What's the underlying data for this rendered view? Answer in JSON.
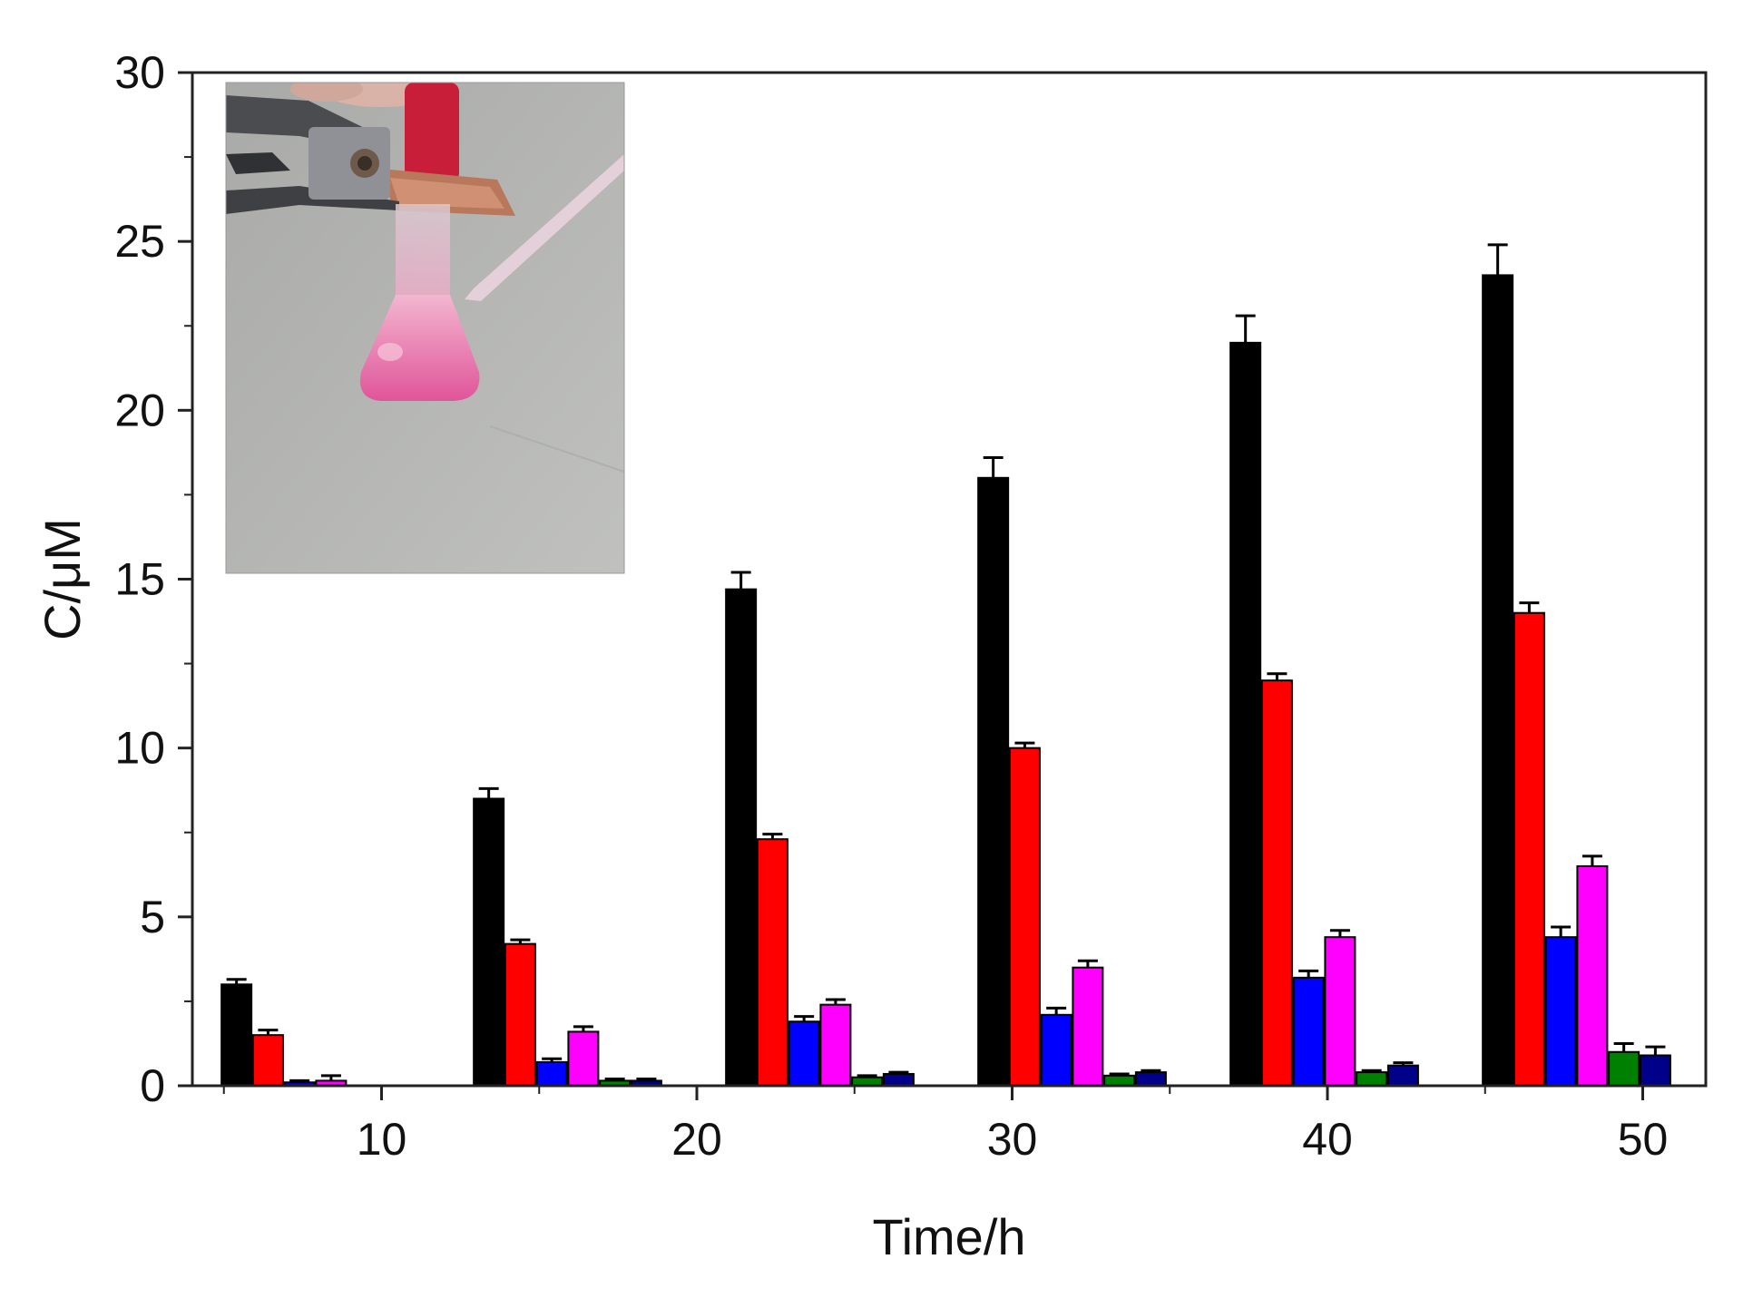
{
  "chart_data": {
    "type": "bar",
    "xlabel": "Time/h",
    "ylabel": "C/μM",
    "xlim": [
      4,
      52
    ],
    "ylim": [
      0,
      30
    ],
    "x_ticks": [
      10,
      20,
      30,
      40,
      50
    ],
    "y_ticks": [
      0,
      5,
      10,
      15,
      20,
      25,
      30
    ],
    "x_tick_labels": [
      "10",
      "20",
      "30",
      "40",
      "50"
    ],
    "y_tick_labels": [
      "0",
      "5",
      "10",
      "15",
      "20",
      "25",
      "30"
    ],
    "grid": false,
    "legend": "none",
    "series_colors": [
      "#000000",
      "#ff0000",
      "#0000ff",
      "#ff00ff",
      "#008000",
      "#00008b"
    ],
    "bars": [
      [
        [
          5.4,
          3.0,
          0.15
        ],
        [
          6.4,
          1.5,
          0.15
        ],
        [
          7.4,
          0.1,
          0.05
        ],
        [
          8.4,
          0.15,
          0.15
        ],
        null,
        null
      ],
      [
        [
          13.4,
          8.5,
          0.3
        ],
        [
          14.4,
          4.2,
          0.12
        ],
        [
          15.4,
          0.7,
          0.1
        ],
        [
          16.4,
          1.6,
          0.15
        ],
        [
          17.4,
          0.15,
          0.05
        ],
        [
          18.4,
          0.15,
          0.05
        ]
      ],
      [
        [
          21.4,
          14.7,
          0.5
        ],
        [
          22.4,
          7.3,
          0.15
        ],
        [
          23.4,
          1.9,
          0.15
        ],
        [
          24.4,
          2.4,
          0.15
        ],
        [
          25.4,
          0.25,
          0.05
        ],
        [
          26.4,
          0.35,
          0.05
        ]
      ],
      [
        [
          29.4,
          18.0,
          0.6
        ],
        [
          30.4,
          10.0,
          0.15
        ],
        [
          31.4,
          2.1,
          0.2
        ],
        [
          32.4,
          3.5,
          0.2
        ],
        [
          33.4,
          0.3,
          0.05
        ],
        [
          34.4,
          0.4,
          0.05
        ]
      ],
      [
        [
          37.4,
          22.0,
          0.8
        ],
        [
          38.4,
          12.0,
          0.2
        ],
        [
          39.4,
          3.2,
          0.2
        ],
        [
          40.4,
          4.4,
          0.2
        ],
        [
          41.4,
          0.4,
          0.05
        ],
        [
          42.4,
          0.6,
          0.08
        ]
      ],
      [
        [
          45.4,
          24.0,
          0.9
        ],
        [
          46.4,
          14.0,
          0.3
        ],
        [
          47.4,
          4.4,
          0.3
        ],
        [
          48.4,
          6.5,
          0.3
        ],
        [
          49.4,
          1.0,
          0.25
        ],
        [
          50.4,
          0.9,
          0.25
        ]
      ]
    ]
  },
  "inset_photo": {
    "description_icon": "photo-flask-icon",
    "liquid_color": "#e8669e",
    "background_color": "#b9bab7"
  }
}
